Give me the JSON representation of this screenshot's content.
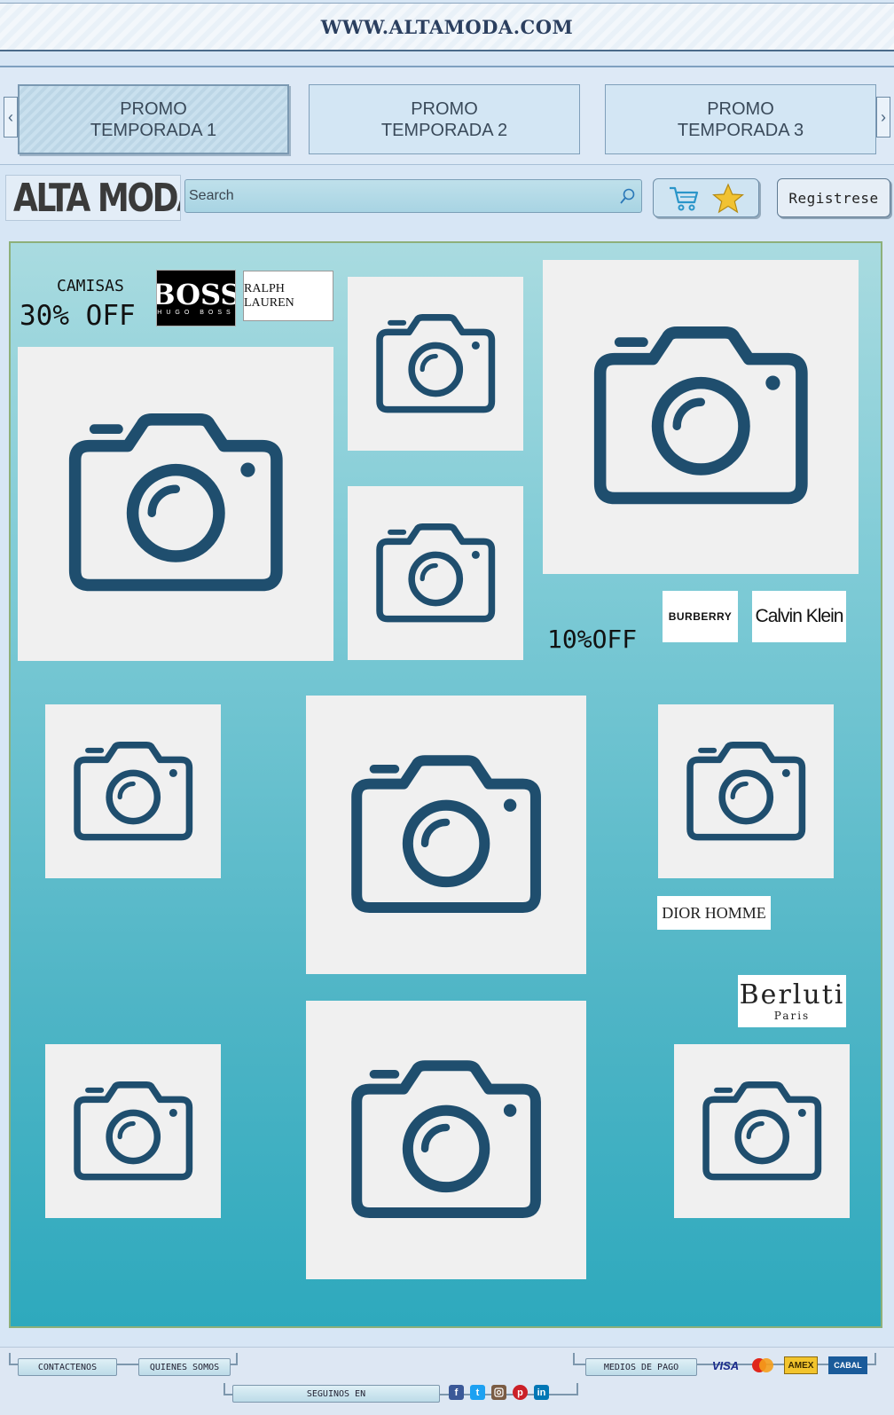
{
  "site": {
    "url_title": "WWW.ALTAMODA.COM"
  },
  "promos": [
    {
      "label": "PROMO\nTEMPORADA 1"
    },
    {
      "label": "PROMO\nTEMPORADA 2"
    },
    {
      "label": "PROMO\nTEMPORADA 3"
    }
  ],
  "header": {
    "logo_text": "ALTA MODA",
    "search_placeholder": "Search",
    "register_label": "Registrese",
    "icons": {
      "search": "search-icon",
      "cart": "cart-icon",
      "favorites": "star-icon"
    }
  },
  "main": {
    "offer1": {
      "category": "CAMISAS",
      "discount": "30% OFF"
    },
    "offer2": {
      "discount": "10%OFF"
    },
    "brands": {
      "boss": "BOSS",
      "boss_sub": "HUGO BOSS",
      "ralph": "RALPH LAUREN",
      "burberry": "BURBERRY",
      "calvin": "Calvin Klein",
      "dior": "DIOR HOMME",
      "berluti": "Berluti",
      "berluti_sub": "Paris"
    },
    "image_icon": "camera-icon"
  },
  "footer": {
    "contact": "CONTACTENOS",
    "about": "QUIENES SOMOS",
    "payment": "MEDIOS DE PAGO",
    "follow": "SEGUINOS EN",
    "payment_methods": {
      "visa": "VISA",
      "mastercard": "MasterCard",
      "amex": "AMEX",
      "cabal": "CABAL"
    },
    "social": [
      "facebook-icon",
      "twitter-icon",
      "instagram-icon",
      "pinterest-icon",
      "linkedin-icon"
    ]
  },
  "colors": {
    "accent": "#2ea9bd",
    "icon": "#1f4e6e",
    "panel_border": "#8db07a"
  }
}
